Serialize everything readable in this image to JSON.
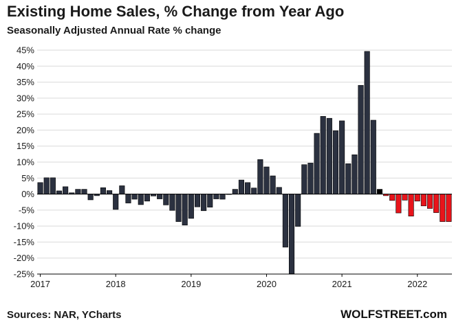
{
  "title": "Existing Home Sales, % Change from Year Ago",
  "subtitle": "Seasonally Adjusted Annual Rate % change",
  "source": "Sources: NAR, YCharts",
  "brand": "WOLFSTREET.com",
  "colors": {
    "bar_positive": "#2b3140",
    "bar_negative_recent": "#e8141b",
    "bar_highlight": "#000000",
    "bar_outline": "#000000",
    "grid": "#d9d9d9"
  },
  "chart_data": {
    "type": "bar",
    "title": "Existing Home Sales, % Change from Year Ago",
    "subtitle": "Seasonally Adjusted Annual Rate % change",
    "xlabel": "",
    "ylabel": "",
    "ylim": [
      -25,
      45
    ],
    "y_ticks": [
      45,
      40,
      35,
      30,
      25,
      20,
      15,
      10,
      5,
      0,
      -5,
      -10,
      -15,
      -20,
      -25
    ],
    "y_tick_labels": [
      "45%",
      "40%",
      "35%",
      "30%",
      "25%",
      "20%",
      "15%",
      "10%",
      "5%",
      "0%",
      "-5%",
      "-10%",
      "-15%",
      "-20%",
      "-25%"
    ],
    "x_tick_labels": [
      {
        "label": "2017",
        "index": 0
      },
      {
        "label": "2018",
        "index": 12
      },
      {
        "label": "2019",
        "index": 24
      },
      {
        "label": "2020",
        "index": 36
      },
      {
        "label": "2021",
        "index": 48
      },
      {
        "label": "2022",
        "index": 60
      }
    ],
    "grid": true,
    "legend": "none",
    "months": [
      "2017-01",
      "2017-02",
      "2017-03",
      "2017-04",
      "2017-05",
      "2017-06",
      "2017-07",
      "2017-08",
      "2017-09",
      "2017-10",
      "2017-11",
      "2017-12",
      "2018-01",
      "2018-02",
      "2018-03",
      "2018-04",
      "2018-05",
      "2018-06",
      "2018-07",
      "2018-08",
      "2018-09",
      "2018-10",
      "2018-11",
      "2018-12",
      "2019-01",
      "2019-02",
      "2019-03",
      "2019-04",
      "2019-05",
      "2019-06",
      "2019-07",
      "2019-08",
      "2019-09",
      "2019-10",
      "2019-11",
      "2019-12",
      "2020-01",
      "2020-02",
      "2020-03",
      "2020-04",
      "2020-05",
      "2020-06",
      "2020-07",
      "2020-08",
      "2020-09",
      "2020-10",
      "2020-11",
      "2020-12",
      "2021-01",
      "2021-02",
      "2021-03",
      "2021-04",
      "2021-05",
      "2021-06",
      "2021-07",
      "2021-08",
      "2021-09",
      "2021-10",
      "2021-11",
      "2021-12",
      "2022-01",
      "2022-02",
      "2022-03",
      "2022-04",
      "2022-05",
      "2022-06"
    ],
    "values": [
      3.6,
      5.1,
      5.1,
      1.0,
      2.3,
      0.4,
      1.5,
      1.5,
      -1.8,
      -0.5,
      2.0,
      1.1,
      -4.8,
      2.6,
      -2.8,
      -1.6,
      -3.3,
      -2.2,
      -0.6,
      -1.5,
      -3.4,
      -5.1,
      -8.6,
      -9.7,
      -7.6,
      -4.0,
      -5.2,
      -4.1,
      -1.5,
      -1.6,
      0.0,
      1.5,
      4.4,
      3.6,
      1.9,
      10.8,
      8.5,
      5.7,
      2.1,
      -16.6,
      -24.9,
      -10.1,
      9.2,
      9.7,
      19.0,
      24.3,
      23.7,
      19.8,
      22.9,
      9.5,
      12.3,
      34.0,
      44.6,
      23.1,
      1.5,
      -0.5,
      -2.0,
      -5.9,
      -1.9,
      -6.9,
      -2.2,
      -3.7,
      -4.5,
      -5.8,
      -8.6,
      -8.6
    ],
    "highlight_index": 54,
    "negative_red_start_index": 55
  }
}
